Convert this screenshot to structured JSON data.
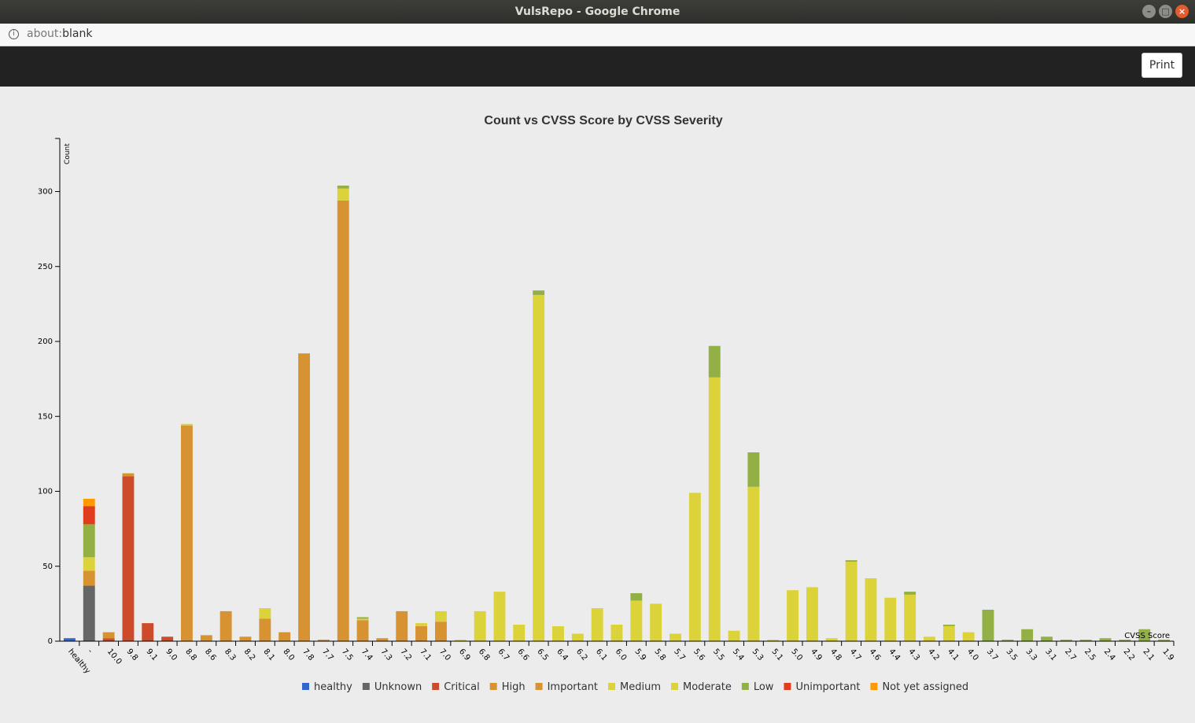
{
  "window": {
    "title": "VulsRepo - Google Chrome"
  },
  "address": {
    "scheme": "about:",
    "path": "blank"
  },
  "toolbar": {
    "print_label": "Print"
  },
  "chart_data": {
    "type": "bar",
    "stacked": true,
    "title": "Count vs CVSS Score by CVSS Severity",
    "xlabel": "CVSS Score",
    "ylabel": "Count",
    "ylim": [
      0,
      330
    ],
    "yticks": [
      0,
      50,
      100,
      150,
      200,
      250,
      300
    ],
    "legend_position": "bottom",
    "grid": false,
    "categories": [
      "healthy",
      "-",
      "10.0",
      "9.8",
      "9.1",
      "9.0",
      "8.8",
      "8.6",
      "8.3",
      "8.2",
      "8.1",
      "8.0",
      "7.8",
      "7.7",
      "7.5",
      "7.4",
      "7.3",
      "7.2",
      "7.1",
      "7.0",
      "6.9",
      "6.8",
      "6.7",
      "6.6",
      "6.5",
      "6.4",
      "6.2",
      "6.1",
      "6.0",
      "5.9",
      "5.8",
      "5.7",
      "5.6",
      "5.5",
      "5.4",
      "5.3",
      "5.1",
      "5.0",
      "4.9",
      "4.8",
      "4.7",
      "4.6",
      "4.4",
      "4.3",
      "4.2",
      "4.1",
      "4.0",
      "3.7",
      "3.5",
      "3.3",
      "3.1",
      "2.7",
      "2.5",
      "2.4",
      "2.2",
      "2.1",
      "1.9"
    ],
    "series": [
      {
        "name": "healthy",
        "color": "#3366cc",
        "values": [
          2,
          0,
          0,
          0,
          0,
          0,
          0,
          0,
          0,
          0,
          0,
          0,
          0,
          0,
          0,
          0,
          0,
          0,
          0,
          0,
          0,
          0,
          0,
          0,
          0,
          0,
          0,
          0,
          0,
          0,
          0,
          0,
          0,
          0,
          0,
          0,
          0,
          0,
          0,
          0,
          0,
          0,
          0,
          0,
          0,
          0,
          0,
          0,
          0,
          0,
          0,
          0,
          0,
          0,
          0,
          0,
          0
        ]
      },
      {
        "name": "Unknown",
        "color": "#666666",
        "values": [
          0,
          37,
          0,
          0,
          0,
          0,
          0,
          0,
          0,
          0,
          0,
          0,
          0,
          0,
          0,
          0,
          0,
          0,
          0,
          0,
          0,
          0,
          0,
          0,
          0,
          0,
          0,
          0,
          0,
          0,
          0,
          0,
          0,
          0,
          0,
          0,
          0,
          0,
          0,
          0,
          0,
          0,
          0,
          0,
          0,
          0,
          0,
          0,
          0,
          0,
          0,
          0,
          0,
          0,
          0,
          0,
          0
        ]
      },
      {
        "name": "Critical",
        "color": "#cc4b2a",
        "values": [
          0,
          0,
          2,
          110,
          12,
          3,
          0,
          0,
          0,
          0,
          0,
          0,
          0,
          0,
          0,
          0,
          0,
          0,
          0,
          0,
          0,
          0,
          0,
          0,
          0,
          0,
          0,
          0,
          0,
          0,
          0,
          0,
          0,
          0,
          0,
          0,
          0,
          0,
          0,
          0,
          0,
          0,
          0,
          0,
          0,
          0,
          0,
          0,
          0,
          0,
          0,
          0,
          0,
          0,
          0,
          0,
          0
        ]
      },
      {
        "name": "High",
        "color": "#d79232",
        "values": [
          0,
          0,
          0,
          0,
          0,
          0,
          0,
          0,
          0,
          0,
          0,
          0,
          0,
          0,
          0,
          0,
          0,
          0,
          0,
          0,
          0,
          0,
          0,
          0,
          0,
          0,
          0,
          0,
          0,
          0,
          0,
          0,
          0,
          0,
          0,
          0,
          0,
          0,
          0,
          0,
          0,
          0,
          0,
          0,
          0,
          0,
          0,
          0,
          0,
          0,
          0,
          0,
          0,
          0,
          0,
          0,
          0
        ]
      },
      {
        "name": "Important",
        "color": "#d79232",
        "values": [
          0,
          10,
          4,
          2,
          0,
          0,
          144,
          4,
          20,
          3,
          15,
          6,
          192,
          1,
          294,
          14,
          2,
          20,
          10,
          13,
          0,
          0,
          0,
          0,
          0,
          0,
          0,
          0,
          0,
          0,
          0,
          0,
          0,
          0,
          0,
          0,
          0,
          0,
          0,
          0,
          0,
          0,
          0,
          0,
          0,
          0,
          0,
          0,
          0,
          0,
          0,
          0,
          0,
          0,
          0,
          0,
          0
        ]
      },
      {
        "name": "Medium",
        "color": "#dcd23a",
        "values": [
          0,
          0,
          0,
          0,
          0,
          0,
          0,
          0,
          0,
          0,
          0,
          0,
          0,
          0,
          0,
          0,
          0,
          0,
          0,
          0,
          0,
          0,
          0,
          0,
          0,
          0,
          0,
          0,
          0,
          0,
          0,
          0,
          0,
          0,
          0,
          0,
          0,
          0,
          0,
          0,
          0,
          0,
          0,
          0,
          0,
          0,
          0,
          0,
          0,
          0,
          0,
          0,
          0,
          0,
          0,
          0,
          0
        ]
      },
      {
        "name": "Moderate",
        "color": "#dcd23a",
        "values": [
          0,
          9,
          0,
          0,
          0,
          0,
          1,
          0,
          0,
          0,
          7,
          0,
          0,
          0,
          8,
          1,
          0,
          0,
          2,
          7,
          1,
          20,
          33,
          11,
          231,
          10,
          5,
          22,
          11,
          27,
          25,
          5,
          99,
          176,
          7,
          103,
          1,
          34,
          36,
          2,
          53,
          42,
          29,
          31,
          3,
          10,
          6,
          0,
          0,
          0,
          0,
          0,
          0,
          0,
          0,
          0,
          0
        ]
      },
      {
        "name": "Low",
        "color": "#93b044",
        "values": [
          0,
          22,
          0,
          0,
          0,
          0,
          0,
          0,
          0,
          0,
          0,
          0,
          0,
          0,
          2,
          1,
          0,
          0,
          0,
          0,
          0,
          0,
          0,
          0,
          3,
          0,
          0,
          0,
          0,
          5,
          0,
          0,
          0,
          21,
          0,
          23,
          0,
          0,
          0,
          0,
          1,
          0,
          0,
          2,
          0,
          1,
          0,
          21,
          1,
          8,
          3,
          1,
          1,
          2,
          1,
          8,
          1
        ]
      },
      {
        "name": "Unimportant",
        "color": "#e03c1e",
        "values": [
          0,
          12,
          0,
          0,
          0,
          0,
          0,
          0,
          0,
          0,
          0,
          0,
          0,
          0,
          0,
          0,
          0,
          0,
          0,
          0,
          0,
          0,
          0,
          0,
          0,
          0,
          0,
          0,
          0,
          0,
          0,
          0,
          0,
          0,
          0,
          0,
          0,
          0,
          0,
          0,
          0,
          0,
          0,
          0,
          0,
          0,
          0,
          0,
          0,
          0,
          0,
          0,
          0,
          0,
          0,
          0,
          0
        ]
      },
      {
        "name": "Not yet assigned",
        "color": "#ff9a05",
        "values": [
          0,
          5,
          0,
          0,
          0,
          0,
          0,
          0,
          0,
          0,
          0,
          0,
          0,
          0,
          0,
          0,
          0,
          0,
          0,
          0,
          0,
          0,
          0,
          0,
          0,
          0,
          0,
          0,
          0,
          0,
          0,
          0,
          0,
          0,
          0,
          0,
          0,
          0,
          0,
          0,
          0,
          0,
          0,
          0,
          0,
          0,
          0,
          0,
          0,
          0,
          0,
          0,
          0,
          0,
          0,
          0,
          0
        ]
      }
    ]
  }
}
